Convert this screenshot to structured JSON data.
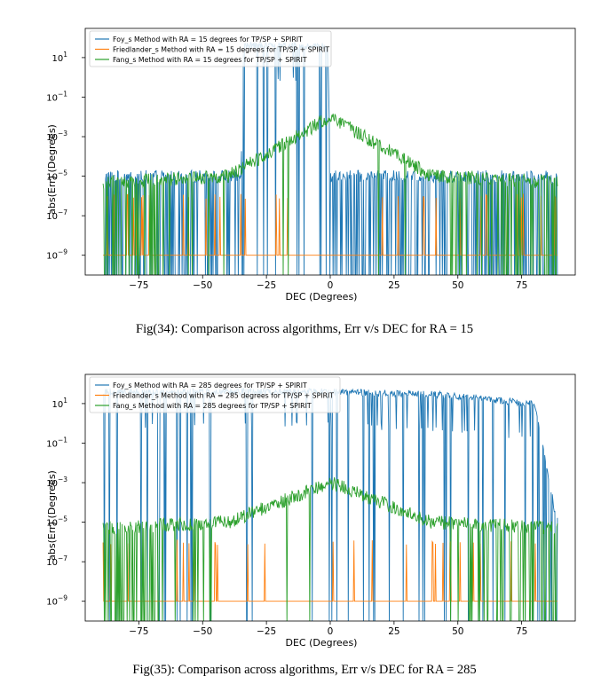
{
  "figures": [
    {
      "caption": "Fig(34): Comparison across algorithms, Err v/s DEC for RA = 15"
    },
    {
      "caption": "Fig(35): Comparison across algorithms, Err v/s DEC for RA = 285"
    }
  ],
  "chart_data": [
    {
      "type": "line",
      "xlabel": "DEC (Degrees)",
      "ylabel": "abs(Err) (Degrees)",
      "yscale": "log",
      "xlim": [
        -96,
        96
      ],
      "ylim": [
        1e-10,
        300
      ],
      "xticks": [
        -75,
        -50,
        -25,
        0,
        25,
        50,
        75
      ],
      "xtick_labels": [
        "−75",
        "−50",
        "−25",
        "0",
        "25",
        "50",
        "75"
      ],
      "yticks": [
        1e-09,
        1e-07,
        1e-05,
        0.001,
        0.1,
        10
      ],
      "ytick_labels": [
        "10",
        "10",
        "10",
        "10",
        "10",
        "10"
      ],
      "ytick_exponents": [
        "−9",
        "−7",
        "−5",
        "−3",
        "−1",
        "1"
      ],
      "legend_position": "top-left",
      "colors": {
        "foy": "#1f77b4",
        "friedlander": "#ff7f0e",
        "fang": "#2ca02c"
      },
      "series": [
        {
          "name": "Foy_s Method with RA = 15 degrees for TP/SP + SPIRIT",
          "approx_level": "~1e-5 with dropouts; ~40 from DEC -35 to -1",
          "x": [
            -89,
            -35,
            -34,
            -1,
            0,
            89
          ],
          "y": [
            1e-05,
            1e-05,
            40,
            40,
            1e-05,
            1e-05
          ]
        },
        {
          "name": "Friedlander_s Method with RA = 15 degrees for TP/SP + SPIRIT",
          "approx_level": "~1e-9 baseline, spikes to ~1e-6",
          "x": [
            -89,
            89
          ],
          "y": [
            1e-09,
            1e-09
          ]
        },
        {
          "name": "Fang_s Method with RA = 15 degrees for TP/SP + SPIRIT",
          "approx_level": "~1e-5, peak ~1e-2 at DEC 0",
          "x": [
            -89,
            -40,
            0,
            40,
            89
          ],
          "y": [
            5e-06,
            1e-05,
            0.01,
            1e-05,
            5e-06
          ]
        }
      ]
    },
    {
      "type": "line",
      "xlabel": "DEC (Degrees)",
      "ylabel": "abs(Err) (Degrees)",
      "yscale": "log",
      "xlim": [
        -96,
        96
      ],
      "ylim": [
        1e-10,
        300
      ],
      "xticks": [
        -75,
        -50,
        -25,
        0,
        25,
        50,
        75
      ],
      "xtick_labels": [
        "−75",
        "−50",
        "−25",
        "0",
        "25",
        "50",
        "75"
      ],
      "yticks": [
        1e-09,
        1e-07,
        1e-05,
        0.001,
        0.1,
        10
      ],
      "ytick_labels": [
        "10",
        "10",
        "10",
        "10",
        "10",
        "10"
      ],
      "ytick_exponents": [
        "−9",
        "−7",
        "−5",
        "−3",
        "−1",
        "1"
      ],
      "legend_position": "top-left",
      "colors": {
        "foy": "#1f77b4",
        "friedlander": "#ff7f0e",
        "fang": "#2ca02c"
      },
      "series": [
        {
          "name": "Foy_s Method with RA = 285 degrees for TP/SP + SPIRIT",
          "approx_level": "~40 from DEC -5 to 80, noisy elsewhere",
          "x": [
            -89,
            -5,
            40,
            80,
            89
          ],
          "y": [
            40,
            40,
            30,
            10,
            1e-05
          ]
        },
        {
          "name": "Friedlander_s Method with RA = 285 degrees for TP/SP + SPIRIT",
          "approx_level": "~1e-9 baseline, spikes to ~1e-6",
          "x": [
            -89,
            89
          ],
          "y": [
            1e-09,
            1e-09
          ]
        },
        {
          "name": "Fang_s Method with RA = 285 degrees for TP/SP + SPIRIT",
          "approx_level": "~1e-5, peak ~1e-3 at DEC 0",
          "x": [
            -89,
            -40,
            0,
            40,
            89
          ],
          "y": [
            5e-06,
            1e-05,
            0.001,
            1e-05,
            5e-06
          ]
        }
      ]
    }
  ]
}
